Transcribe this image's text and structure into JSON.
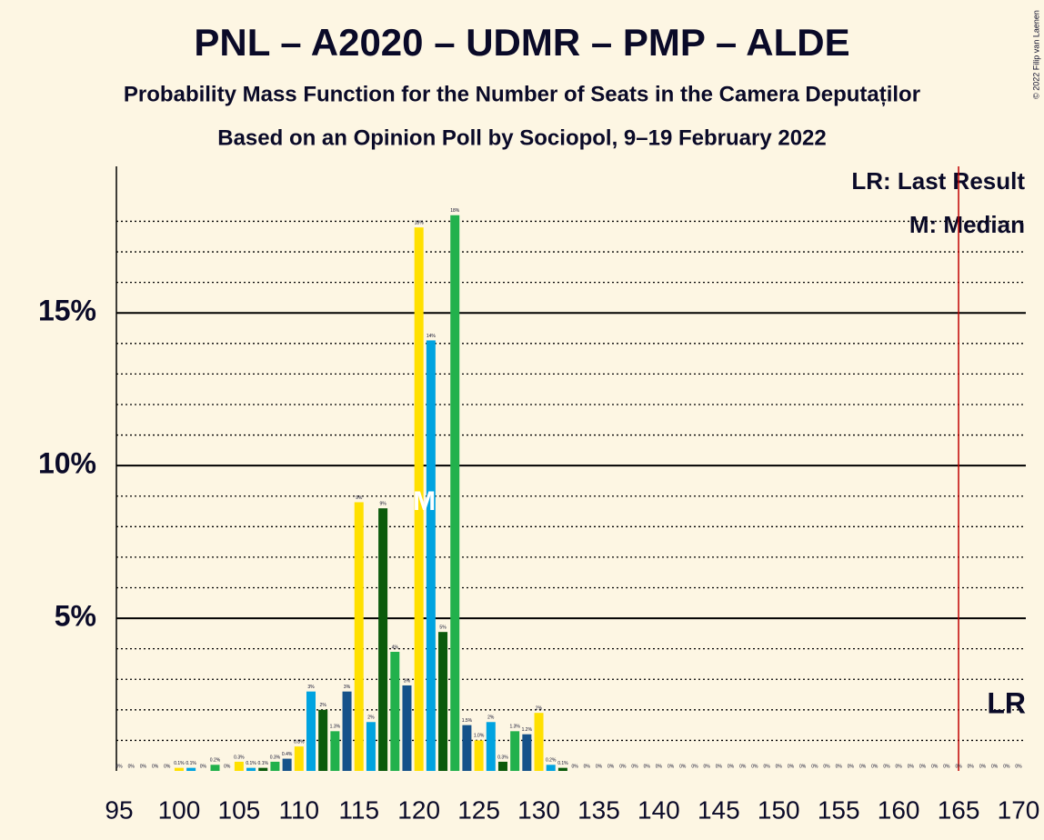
{
  "chart_data": {
    "type": "bar",
    "title": "PNL – A2020 – UDMR – PMP – ALDE",
    "subtitle": "Probability Mass Function for the Number of Seats in the Camera Deputaților",
    "subtitle2": "Based on an Opinion Poll by Sociopol, 9–19 February 2022",
    "copyright": "© 2022 Filip van Laenen",
    "x": [
      95,
      96,
      97,
      98,
      99,
      100,
      101,
      102,
      103,
      104,
      105,
      106,
      107,
      108,
      109,
      110,
      111,
      112,
      113,
      114,
      115,
      116,
      117,
      118,
      119,
      120,
      121,
      122,
      123,
      124,
      125,
      126,
      127,
      128,
      129,
      130,
      131,
      132,
      133,
      134,
      135,
      136,
      137,
      138,
      139,
      140,
      141,
      142,
      143,
      144,
      145,
      146,
      147,
      148,
      149,
      150,
      151,
      152,
      153,
      154,
      155,
      156,
      157,
      158,
      159,
      160,
      161,
      162,
      163,
      164,
      165,
      166,
      167,
      168,
      169,
      170
    ],
    "values": [
      0,
      0,
      0,
      0,
      0,
      0.1,
      0.1,
      0,
      0.2,
      0,
      0.3,
      0.1,
      0.1,
      0.3,
      0.4,
      0.8,
      2.6,
      2.0,
      1.3,
      2.6,
      8.8,
      1.6,
      8.6,
      3.9,
      2.8,
      17.8,
      14.1,
      4.55,
      18.2,
      1.5,
      1.0,
      1.6,
      0.3,
      1.3,
      1.2,
      1.9,
      0.2,
      0.1,
      0,
      0,
      0,
      0,
      0,
      0,
      0,
      0,
      0,
      0,
      0,
      0,
      0,
      0,
      0,
      0,
      0,
      0,
      0,
      0,
      0,
      0,
      0,
      0,
      0,
      0,
      0,
      0,
      0,
      0,
      0,
      0,
      0,
      0,
      0,
      0,
      0,
      0
    ],
    "value_labels": [
      "0%",
      "0%",
      "0%",
      "0%",
      "0%",
      "0.1%",
      "0.1%",
      "0%",
      "0.2%",
      "0%",
      "0.3%",
      "0.1%",
      "0.1%",
      "0.3%",
      "0.4%",
      "0.8%",
      "3%",
      "2%",
      "1.3%",
      "3%",
      "9%",
      "2%",
      "9%",
      "4%",
      "3%",
      "18%",
      "14%",
      "5%",
      "18%",
      "1.5%",
      "1.0%",
      "2%",
      "0.3%",
      "1.3%",
      "1.2%",
      "2%",
      "0.2%",
      "0.1%",
      "0%",
      "0%",
      "0%",
      "0%",
      "0%",
      "0%",
      "0%",
      "0%",
      "0%",
      "0%",
      "0%",
      "0%",
      "0%",
      "0%",
      "0%",
      "0%",
      "0%",
      "0%",
      "0%",
      "0%",
      "0%",
      "0%",
      "0%",
      "0%",
      "0%",
      "0%",
      "0%",
      "0%",
      "0%",
      "0%",
      "0%",
      "0%",
      "0%",
      "0%",
      "0%",
      "0%",
      "0%",
      "0%"
    ],
    "colors": [
      "#ffe000",
      "#00a3e0",
      "#0b5a0b",
      "#22b14c",
      "#15528a"
    ],
    "xlim": [
      95,
      170
    ],
    "xticks": [
      95,
      100,
      105,
      110,
      115,
      120,
      125,
      130,
      135,
      140,
      145,
      150,
      155,
      160,
      165,
      170
    ],
    "ylim": [
      0,
      19.8
    ],
    "yticks": [
      {
        "value": 5,
        "label": "5%"
      },
      {
        "value": 10,
        "label": "10%"
      },
      {
        "value": 15,
        "label": "15%"
      }
    ],
    "minor_yticks": [
      1,
      2,
      3,
      4,
      6,
      7,
      8,
      9,
      11,
      12,
      13,
      14,
      16,
      17,
      18
    ],
    "median": {
      "x": 120,
      "label": "M"
    },
    "last_result": {
      "x": 165,
      "label": "LR",
      "color": "#c00000"
    },
    "legend": [
      "LR: Last Result",
      "M: Median"
    ]
  }
}
